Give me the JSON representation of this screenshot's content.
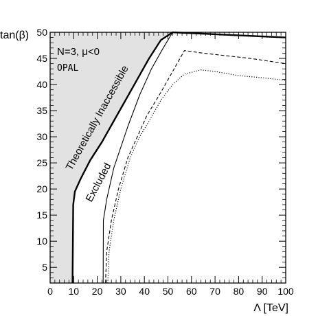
{
  "chart_data": {
    "type": "line",
    "xlabel": "Λ [TeV]",
    "ylabel": "tan(β)",
    "xlim": [
      0,
      100
    ],
    "ylim": [
      2,
      50
    ],
    "xticks": [
      0,
      10,
      20,
      30,
      40,
      50,
      60,
      70,
      80,
      90,
      100
    ],
    "yticks": [
      5,
      10,
      15,
      20,
      25,
      30,
      35,
      40,
      45,
      50
    ],
    "grid": false,
    "legend": "none",
    "annotations": {
      "model": "N=3, μ<0",
      "experiment": "OPAL",
      "inaccessible": "Theoretically Inaccessible",
      "excluded": "Excluded"
    },
    "colors": {
      "shaded_region": "#e2e2e2",
      "lines": "#000000"
    },
    "series": [
      {
        "style": "thick-solid",
        "role": "theoretical-boundary",
        "points": [
          [
            9.5,
            2
          ],
          [
            9.8,
            17
          ],
          [
            10.5,
            19.5
          ],
          [
            13,
            22
          ],
          [
            17,
            25.5
          ],
          [
            22,
            29
          ],
          [
            27,
            33
          ],
          [
            32,
            37
          ],
          [
            37,
            41
          ],
          [
            42,
            45
          ],
          [
            47,
            48.5
          ],
          [
            52,
            50
          ],
          [
            100,
            49
          ]
        ]
      },
      {
        "style": "thin-solid",
        "role": "exclusion-limit",
        "points": [
          [
            22.5,
            2
          ],
          [
            22.6,
            14
          ],
          [
            24,
            18
          ],
          [
            27,
            24
          ],
          [
            33,
            32
          ],
          [
            38,
            38
          ],
          [
            43,
            43
          ],
          [
            48,
            47
          ],
          [
            52,
            50
          ]
        ]
      },
      {
        "style": "dashed",
        "role": "expected-limit",
        "points": [
          [
            23.5,
            2
          ],
          [
            24,
            8
          ],
          [
            26,
            14
          ],
          [
            29,
            20
          ],
          [
            33,
            26
          ],
          [
            37,
            30
          ],
          [
            41,
            34
          ],
          [
            47,
            38.5
          ],
          [
            52,
            42.5
          ],
          [
            57,
            46.5
          ],
          [
            65,
            46
          ],
          [
            75,
            45.5
          ],
          [
            85,
            45
          ],
          [
            100,
            44
          ]
        ]
      },
      {
        "style": "dotted",
        "role": "limit",
        "points": [
          [
            24.5,
            2
          ],
          [
            25,
            8
          ],
          [
            27,
            14
          ],
          [
            30,
            20
          ],
          [
            34,
            26
          ],
          [
            38,
            30
          ],
          [
            42,
            33
          ],
          [
            47,
            37
          ],
          [
            52,
            40
          ],
          [
            57,
            42
          ],
          [
            64,
            42.8
          ],
          [
            70,
            42.5
          ],
          [
            80,
            41.7
          ],
          [
            90,
            41.3
          ],
          [
            100,
            40.8
          ]
        ]
      }
    ]
  }
}
